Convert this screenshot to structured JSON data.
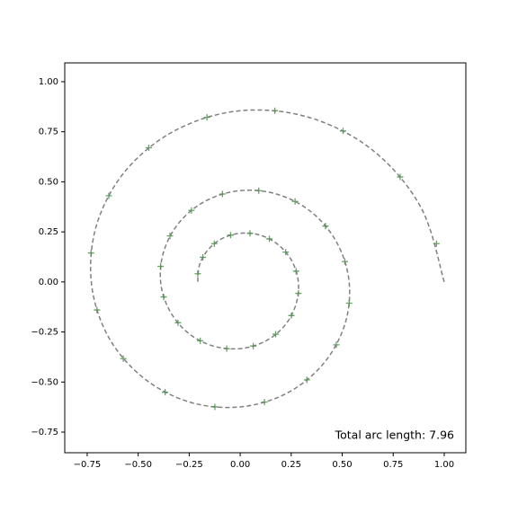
{
  "chart_data": {
    "type": "line",
    "annotation": "Total arc length: 7.96",
    "xlim": [
      -0.86,
      1.106
    ],
    "ylim": [
      -0.853,
      1.094
    ],
    "xticks": [
      {
        "value": -0.75,
        "label": "−0.75"
      },
      {
        "value": -0.5,
        "label": "−0.50"
      },
      {
        "value": -0.25,
        "label": "−0.25"
      },
      {
        "value": 0,
        "label": "0.00"
      },
      {
        "value": 0.25,
        "label": "0.25"
      },
      {
        "value": 0.5,
        "label": "0.50"
      },
      {
        "value": 0.75,
        "label": "0.75"
      },
      {
        "value": 1,
        "label": "1.00"
      }
    ],
    "yticks": [
      {
        "value": -0.75,
        "label": "−0.75"
      },
      {
        "value": -0.5,
        "label": "−0.50"
      },
      {
        "value": -0.25,
        "label": "−0.25"
      },
      {
        "value": 0,
        "label": "0.00"
      },
      {
        "value": 0.25,
        "label": "0.25"
      },
      {
        "value": 0.5,
        "label": "0.50"
      },
      {
        "value": 0.75,
        "label": "0.75"
      },
      {
        "value": 1,
        "label": "1.00"
      }
    ],
    "series": [
      {
        "color": "#808080",
        "linestyle": "dashed",
        "x": [
          1,
          0.888,
          0.654,
          0.34,
          0,
          -0.314,
          -0.559,
          -0.702,
          -0.73,
          -0.649,
          -0.477,
          -0.248,
          0,
          0.23,
          0.408,
          0.513,
          0.534,
          0.474,
          0.349,
          0.181,
          0,
          -0.168,
          -0.298,
          -0.374,
          -0.39,
          -0.346,
          -0.255,
          -0.133,
          0,
          0.123,
          0.218,
          0.273,
          0.285,
          0.253,
          0.186,
          0.097,
          0,
          -0.09,
          -0.159,
          -0.2,
          -0.208
        ],
        "values": [
          0,
          0.368,
          0.654,
          0.821,
          0.855,
          0.759,
          0.559,
          0.291,
          0,
          -0.269,
          -0.477,
          -0.6,
          -0.624,
          -0.555,
          -0.408,
          -0.212,
          0,
          0.196,
          0.349,
          0.438,
          0.456,
          0.405,
          0.298,
          0.155,
          0,
          -0.143,
          -0.255,
          -0.32,
          -0.333,
          -0.296,
          -0.218,
          -0.113,
          0,
          0.105,
          0.186,
          0.234,
          0.243,
          0.216,
          0.159,
          0.083,
          0
        ]
      },
      {
        "color": "#4e8f4e",
        "marker": "+",
        "x": [
          0.962,
          0.784,
          0.504,
          0.17,
          -0.163,
          -0.448,
          -0.644,
          -0.731,
          -0.702,
          -0.573,
          -0.368,
          -0.124,
          0.119,
          0.327,
          0.471,
          0.534,
          0.513,
          0.418,
          0.269,
          0.091,
          -0.087,
          -0.239,
          -0.344,
          -0.39,
          -0.375,
          -0.305,
          -0.196,
          -0.066,
          0.064,
          0.174,
          0.251,
          0.285,
          0.274,
          0.223,
          0.143,
          0.048,
          -0.047,
          -0.127,
          -0.183,
          -0.208
        ],
        "values": [
          0.191,
          0.524,
          0.754,
          0.855,
          0.822,
          0.67,
          0.43,
          0.145,
          -0.14,
          -0.383,
          -0.551,
          -0.624,
          -0.6,
          -0.489,
          -0.314,
          -0.106,
          0.102,
          0.279,
          0.402,
          0.456,
          0.439,
          0.357,
          0.23,
          0.078,
          -0.075,
          -0.204,
          -0.294,
          -0.333,
          -0.32,
          -0.261,
          -0.168,
          -0.057,
          0.054,
          0.149,
          0.215,
          0.243,
          0.234,
          0.191,
          0.123,
          0.041
        ]
      }
    ]
  }
}
